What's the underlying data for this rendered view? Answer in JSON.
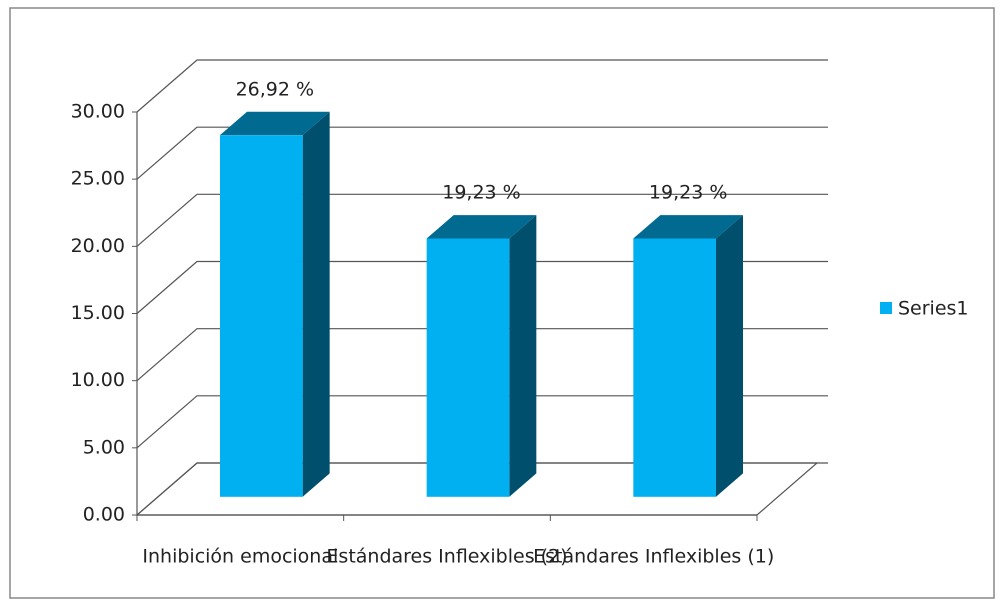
{
  "chart_data": {
    "type": "bar3d",
    "categories": [
      "Inhibición emocional",
      "Estándares Inflexibles (2)",
      "Estándares Inflexibles (1)"
    ],
    "series": [
      {
        "name": "Series1",
        "color": "#00b0f0",
        "values": [
          26.92,
          19.23,
          19.23
        ],
        "value_labels": [
          "26,92 %",
          "19,23 %",
          "19,23 %"
        ]
      }
    ],
    "ylim": [
      0,
      30
    ],
    "yticks": [
      {
        "value": 0,
        "label": "0.00"
      },
      {
        "value": 5,
        "label": "5.00"
      },
      {
        "value": 10,
        "label": "10.00"
      },
      {
        "value": 15,
        "label": "15.00"
      },
      {
        "value": 20,
        "label": "20.00"
      },
      {
        "value": 25,
        "label": "25.00"
      },
      {
        "value": 30,
        "label": "30.00"
      }
    ],
    "grid": true,
    "legend": "right"
  }
}
